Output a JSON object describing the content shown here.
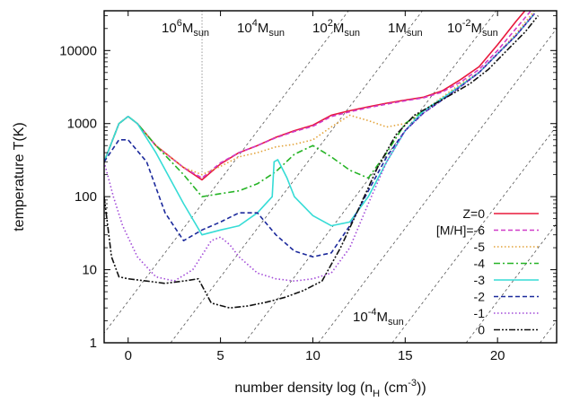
{
  "chart_data": {
    "type": "line",
    "title": "",
    "xlabel": {
      "main": "number density log (n",
      "sub": "H",
      "mid": " (cm",
      "sup": "-3",
      "end": "))"
    },
    "ylabel": "temperature T(K)",
    "xlim": [
      -1.3,
      23.2
    ],
    "ylim": [
      1,
      35000
    ],
    "yscale": "log",
    "x_ticks": [
      0,
      5,
      10,
      15,
      20
    ],
    "x_tick_labels": [
      "0",
      "5",
      "10",
      "15",
      "20"
    ],
    "y_ticks": [
      1,
      10,
      100,
      1000,
      10000
    ],
    "y_tick_labels": [
      "1",
      "10",
      "100",
      "1000",
      "10000"
    ],
    "grid": false,
    "legend_position": "bottom-right",
    "vertical_marker_x": 4,
    "mass_lines": [
      {
        "base": "10",
        "exp": "6",
        "unit": "M",
        "sub": "sun"
      },
      {
        "base": "10",
        "exp": "4",
        "unit": "M",
        "sub": "sun"
      },
      {
        "base": "10",
        "exp": "2",
        "unit": "M",
        "sub": "sun"
      },
      {
        "base": "1",
        "exp": "",
        "unit": "M",
        "sub": "sun"
      },
      {
        "base": "10",
        "exp": "-2",
        "unit": "M",
        "sub": "sun"
      },
      {
        "base": "10",
        "exp": "-4",
        "unit": "M",
        "sub": "sun"
      }
    ],
    "series": [
      {
        "name": "Z=0",
        "color": "#e8183c",
        "dash": "solid",
        "x": [
          -1.3,
          -0.5,
          0.0,
          0.5,
          1.5,
          3.0,
          4.0,
          5.0,
          6.0,
          7.0,
          8.0,
          9.0,
          10.0,
          11.0,
          12.0,
          13.0,
          14.0,
          15.0,
          16.0,
          17.0,
          18.0,
          19.0,
          20.0,
          21.0,
          22.0
        ],
        "y": [
          300,
          1000,
          1250,
          1000,
          500,
          250,
          170,
          280,
          400,
          500,
          650,
          800,
          950,
          1300,
          1500,
          1700,
          1900,
          2100,
          2300,
          2800,
          4000,
          6000,
          12000,
          25000,
          50000
        ]
      },
      {
        "name": "[M/H]=-6",
        "color": "#d03cc8",
        "dash": "dashed",
        "x": [
          -1.3,
          -0.5,
          0.0,
          0.5,
          1.5,
          3.0,
          4.0,
          5.0,
          6.0,
          7.0,
          8.0,
          9.0,
          10.0,
          11.0,
          12.0,
          13.0,
          14.0,
          15.0,
          16.0,
          17.0,
          18.0,
          19.0,
          20.0,
          21.0,
          22.0
        ],
        "y": [
          300,
          1000,
          1250,
          1000,
          500,
          250,
          180,
          290,
          400,
          500,
          640,
          780,
          920,
          1250,
          1450,
          1650,
          1850,
          2050,
          2250,
          2700,
          3700,
          5500,
          10000,
          20000,
          40000
        ]
      },
      {
        "name": "-5",
        "color": "#e3a33a",
        "dash": "dotted",
        "x": [
          -1.3,
          -0.5,
          0.0,
          0.5,
          1.5,
          3.0,
          4.0,
          5.0,
          6.0,
          7.0,
          8.0,
          9.0,
          10.0,
          11.0,
          12.0,
          13.0,
          14.0,
          15.0,
          16.0,
          17.0,
          18.0,
          19.0,
          20.0,
          21.0,
          22.0
        ],
        "y": [
          300,
          1000,
          1250,
          1000,
          500,
          250,
          200,
          260,
          350,
          400,
          480,
          520,
          600,
          900,
          1300,
          1100,
          900,
          1000,
          1500,
          2300,
          3500,
          5000,
          9000,
          17000,
          35000
        ]
      },
      {
        "name": "-4",
        "color": "#26b426",
        "dash": "dashdot",
        "x": [
          -1.3,
          -0.5,
          0.0,
          0.5,
          1.5,
          3.0,
          4.0,
          5.0,
          6.0,
          7.0,
          8.0,
          9.0,
          10.0,
          11.0,
          12.0,
          13.0,
          14.0,
          15.0,
          16.0,
          17.0,
          18.0,
          19.0,
          20.0,
          21.0,
          22.0
        ],
        "y": [
          300,
          1000,
          1250,
          1000,
          500,
          200,
          100,
          110,
          120,
          150,
          220,
          380,
          500,
          350,
          230,
          180,
          400,
          1000,
          1500,
          2200,
          3300,
          5000,
          9000,
          16000,
          32000
        ]
      },
      {
        "name": "-3",
        "color": "#36dcd6",
        "dash": "solid",
        "x": [
          -1.3,
          -0.5,
          0.0,
          0.5,
          1.5,
          3.0,
          4.0,
          5.0,
          6.0,
          7.0,
          7.8,
          7.9,
          8.1,
          8.6,
          9.0,
          10.0,
          11.0,
          12.0,
          13.0,
          14.0,
          15.0,
          16.0,
          17.0,
          18.0,
          19.0,
          20.0,
          21.0,
          22.0
        ],
        "y": [
          300,
          1000,
          1250,
          1000,
          400,
          80,
          30,
          35,
          40,
          60,
          100,
          300,
          320,
          180,
          100,
          55,
          40,
          45,
          100,
          300,
          800,
          1500,
          2200,
          3300,
          5000,
          9000,
          16000,
          32000
        ]
      },
      {
        "name": "-2",
        "color": "#1c2a9c",
        "dash": "dashed",
        "x": [
          -1.3,
          -0.5,
          0.0,
          1.0,
          2.0,
          3.0,
          4.0,
          5.0,
          6.0,
          7.0,
          8.0,
          9.0,
          10.0,
          11.0,
          12.0,
          13.0,
          14.0,
          15.0,
          16.0,
          17.0,
          18.0,
          19.0,
          20.0,
          21.0,
          22.0
        ],
        "y": [
          300,
          600,
          600,
          300,
          60,
          25,
          35,
          45,
          60,
          60,
          30,
          18,
          15,
          17,
          40,
          120,
          350,
          800,
          1400,
          2100,
          3200,
          5000,
          9000,
          16000,
          32000
        ]
      },
      {
        "name": "-1",
        "color": "#a24ad8",
        "dash": "dotted",
        "x": [
          -1.3,
          -0.8,
          -0.3,
          0.5,
          1.5,
          2.5,
          3.5,
          4.5,
          5.0,
          5.5,
          6.0,
          7.0,
          8.0,
          9.0,
          10.0,
          11.0,
          12.0,
          13.0,
          14.0,
          15.0,
          16.0,
          17.0,
          18.0,
          19.0,
          20.0,
          21.0,
          22.0
        ],
        "y": [
          300,
          100,
          40,
          15,
          8,
          7,
          10,
          25,
          28,
          22,
          15,
          9,
          7.5,
          7,
          7.5,
          9,
          20,
          80,
          300,
          800,
          1400,
          2100,
          3200,
          5000,
          9000,
          16000,
          32000
        ]
      },
      {
        "name": "0",
        "color": "#111111",
        "dash": "dashdotdot",
        "x": [
          -1.3,
          -0.9,
          -0.5,
          0.0,
          1.0,
          2.0,
          3.0,
          3.8,
          4.5,
          5.5,
          6.5,
          7.5,
          8.5,
          9.5,
          10.5,
          11.5,
          12.5,
          13.5,
          14.5,
          15.5,
          16.5,
          17.5,
          18.5,
          19.5,
          20.5,
          21.5,
          22.2
        ],
        "y": [
          100,
          15,
          8,
          7.5,
          7,
          6.5,
          7,
          7.5,
          3.5,
          3.0,
          3.2,
          3.6,
          4.2,
          5.2,
          7,
          20,
          70,
          250,
          700,
          1300,
          1800,
          2500,
          3500,
          5500,
          10000,
          18000,
          30000
        ]
      }
    ]
  }
}
